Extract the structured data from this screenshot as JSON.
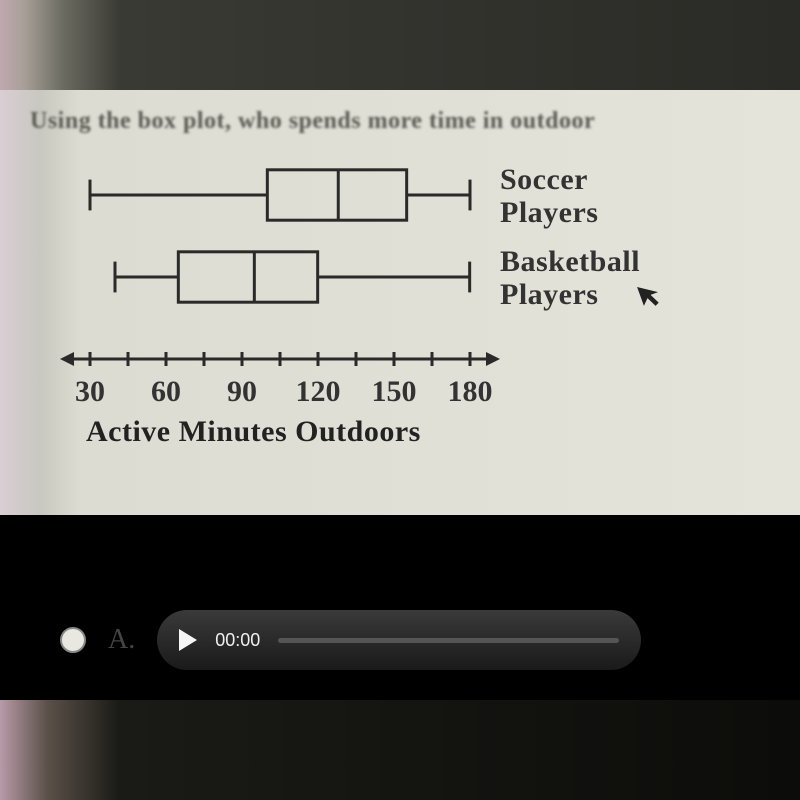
{
  "question_text": "Using the box plot, who spends more time in outdoor",
  "chart": {
    "type": "boxplot",
    "axis_title": "Active Minutes Outdoors",
    "axis_min": 30,
    "axis_max": 180,
    "tick_step": 30,
    "ticks": [
      30,
      60,
      90,
      120,
      150,
      180
    ],
    "minor_between": 1,
    "stroke_color": "#2a2a2a",
    "stroke_width": 3,
    "axis_arrow": true,
    "series": [
      {
        "label": "Soccer Players",
        "min": 30,
        "q1": 100,
        "median": 128,
        "q3": 155,
        "max": 180
      },
      {
        "label": "Basketball Players",
        "min": 40,
        "q1": 65,
        "median": 95,
        "q3": 120,
        "max": 180
      }
    ],
    "label_fontsize": 30,
    "tick_fontsize": 30,
    "title_fontsize": 30,
    "background_color": "#e2e2d8"
  },
  "cursor_icon": "▴",
  "answer": {
    "letter": "A.",
    "audio_time": "00:00"
  }
}
